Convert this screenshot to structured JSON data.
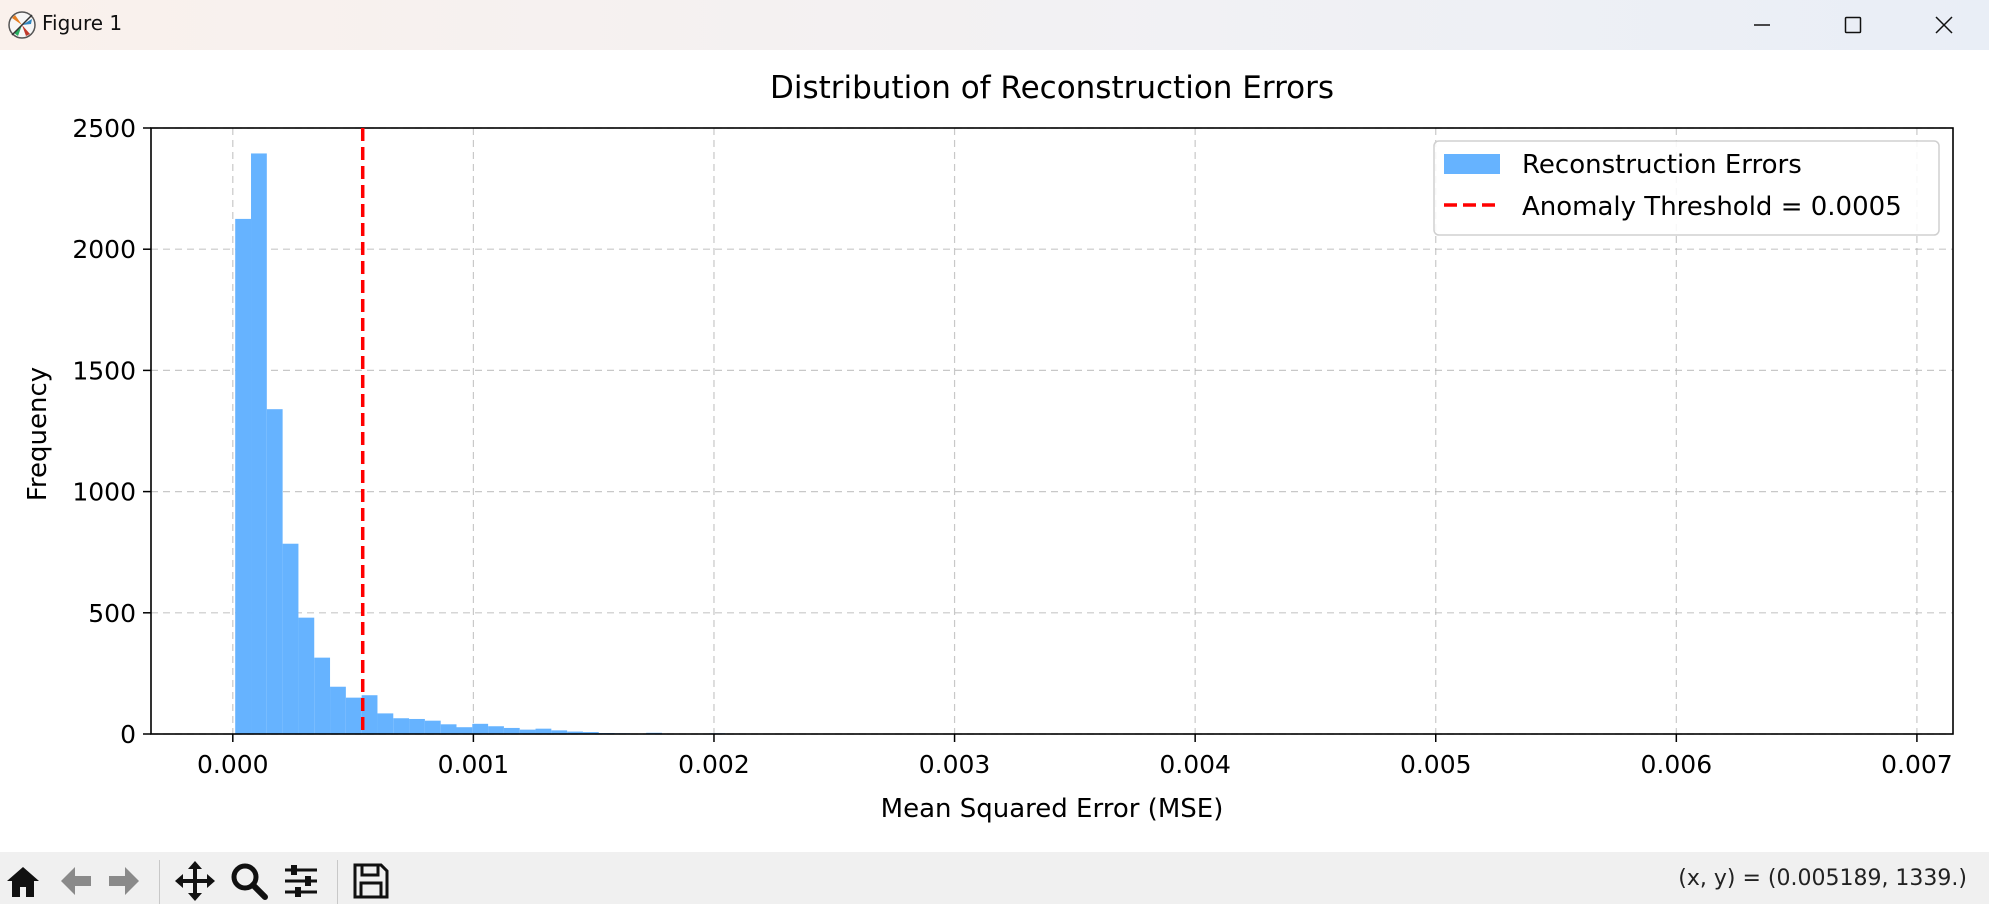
{
  "window": {
    "title": "Figure 1",
    "icon": "matplotlib-icon",
    "controls": [
      "minimize-icon",
      "maximize-icon",
      "close-icon"
    ]
  },
  "toolbar": {
    "buttons": [
      "home-icon",
      "back-icon",
      "forward-icon",
      "pan-icon",
      "zoom-icon",
      "subplots-icon",
      "save-icon"
    ],
    "coords_text": "(x, y) = (0.005189, 1339.)"
  },
  "chart_data": {
    "type": "bar",
    "title": "Distribution of Reconstruction Errors",
    "xlabel": "Mean Squared Error (MSE)",
    "ylabel": "Frequency",
    "xlim": [
      -0.00034,
      0.00715
    ],
    "ylim": [
      0,
      2500
    ],
    "xticks": [
      0.0,
      0.001,
      0.002,
      0.003,
      0.004,
      0.005,
      0.006,
      0.007
    ],
    "xtick_labels": [
      "0.000",
      "0.001",
      "0.002",
      "0.003",
      "0.004",
      "0.005",
      "0.006",
      "0.007"
    ],
    "yticks": [
      0,
      500,
      1000,
      1500,
      2000,
      2500
    ],
    "ytick_labels": [
      "0",
      "500",
      "1000",
      "1500",
      "2000",
      "2500"
    ],
    "grid": true,
    "legend_position": "top-right",
    "histogram": {
      "name": "Reconstruction Errors",
      "color": "#66b3ff",
      "bin_start": 1e-05,
      "bin_width": 6.57e-05,
      "counts": [
        2125,
        2395,
        1340,
        785,
        480,
        315,
        195,
        150,
        160,
        85,
        65,
        62,
        55,
        40,
        28,
        42,
        32,
        25,
        18,
        22,
        15,
        10,
        8,
        4,
        3,
        2,
        5,
        2,
        1,
        2,
        3,
        1,
        1,
        1,
        0,
        1,
        0,
        0,
        0,
        0,
        0,
        0,
        0,
        0,
        0,
        0,
        0,
        0,
        0,
        0,
        0,
        0,
        0,
        0,
        0,
        0,
        0,
        0,
        0,
        0,
        0,
        0,
        0,
        0,
        0,
        0,
        0,
        0,
        0,
        0,
        0,
        0,
        0,
        0,
        0,
        0,
        0,
        0,
        0,
        0,
        0,
        0,
        0,
        0,
        0,
        0,
        0,
        0,
        0,
        0,
        0,
        0,
        0,
        0,
        0,
        0,
        0,
        0,
        0,
        1
      ]
    },
    "threshold": {
      "name": "Anomaly Threshold = 0.0005",
      "value": 0.00054,
      "color": "#ff0000"
    }
  }
}
